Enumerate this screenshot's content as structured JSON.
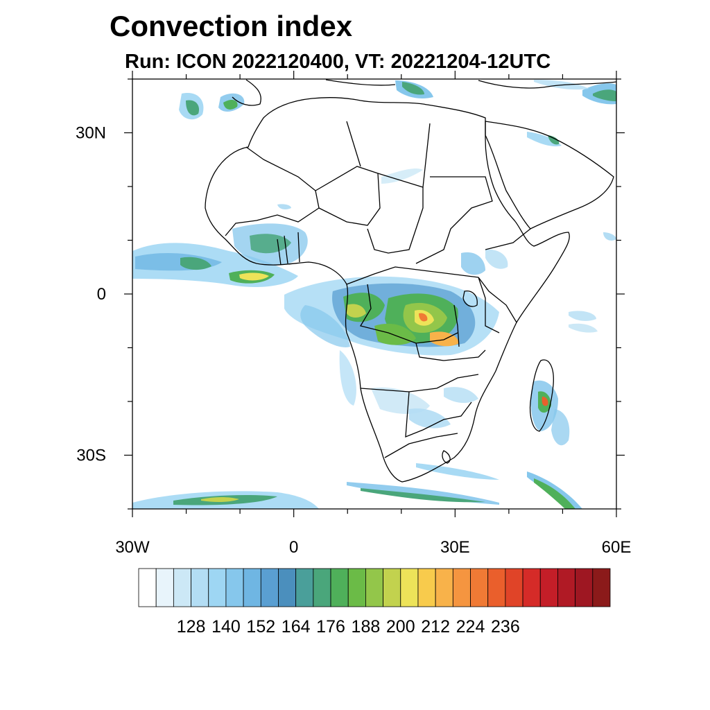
{
  "title": "Convection index",
  "subtitle": "Run: ICON 2022120400,  VT: 20221204-12UTC",
  "map": {
    "lon_range": [
      -30,
      60
    ],
    "lat_range": [
      -40,
      40
    ],
    "x_ticks": [
      {
        "value": -30,
        "label": "30W"
      },
      {
        "value": 0,
        "label": "0"
      },
      {
        "value": 30,
        "label": "30E"
      },
      {
        "value": 60,
        "label": "60E"
      }
    ],
    "y_ticks": [
      {
        "value": 30,
        "label": "30N"
      },
      {
        "value": 0,
        "label": "0"
      },
      {
        "value": -30,
        "label": "30S"
      }
    ]
  },
  "colorbar": {
    "colors": [
      "#ffffff",
      "#e8f4fb",
      "#cce8f6",
      "#b3ddf4",
      "#9ed6f3",
      "#86c7ec",
      "#6fb6e3",
      "#5a9fd2",
      "#4b8fbd",
      "#4a9f9a",
      "#4aa67b",
      "#4fb05a",
      "#6bbb47",
      "#93c64a",
      "#c2d24e",
      "#ede359",
      "#f8cb4c",
      "#f8b24a",
      "#f59540",
      "#f07a35",
      "#ea5f2c",
      "#e04428",
      "#d52b28",
      "#c41e28",
      "#b01a25",
      "#9e1722",
      "#8b1a1a"
    ],
    "labels": [
      "128",
      "140",
      "152",
      "164",
      "176",
      "188",
      "200",
      "212",
      "224",
      "236"
    ]
  },
  "icons": {
    "map": "africa-map"
  }
}
